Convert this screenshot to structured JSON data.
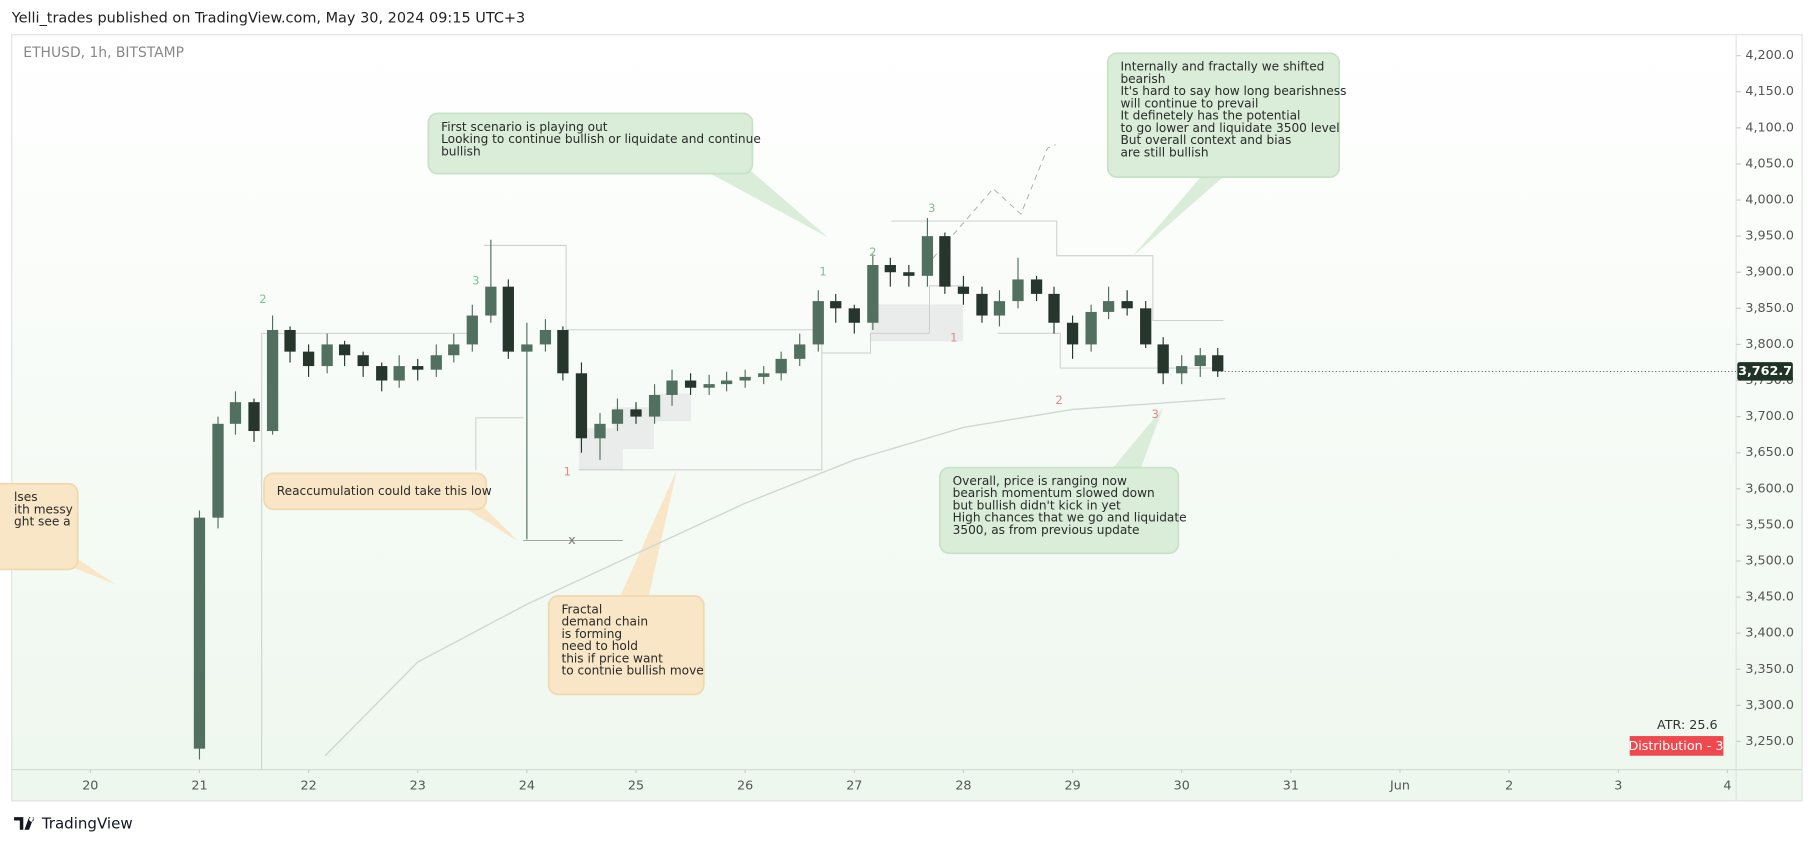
{
  "header": {
    "title": "Yelli_trades published on TradingView.com, May 30, 2024 09:15 UTC+3"
  },
  "chart_data": {
    "type": "candlestick",
    "symbol": "ETHUSD, 1h, BITSTAMP",
    "x": [
      21,
      21.17,
      21.33,
      21.5,
      21.67,
      21.83,
      22,
      22.17,
      22.33,
      22.5,
      22.67,
      22.83,
      23,
      23.17,
      23.33,
      23.5,
      23.67,
      23.83,
      24,
      24.17,
      24.33,
      24.5,
      24.67,
      24.83,
      25,
      25.17,
      25.33,
      25.5,
      25.67,
      25.83,
      26,
      26.17,
      26.33,
      26.5,
      26.67,
      26.83,
      27,
      27.17,
      27.33,
      27.5,
      27.67,
      27.83,
      28,
      28.17,
      28.33,
      28.5,
      28.67,
      28.83,
      29,
      29.17,
      29.33,
      29.5,
      29.67,
      29.83,
      30,
      30.17,
      30.33
    ],
    "open": [
      3240,
      3560,
      3690,
      3720,
      3680,
      3820,
      3790,
      3770,
      3800,
      3785,
      3770,
      3750,
      3770,
      3765,
      3785,
      3800,
      3840,
      3880,
      3790,
      3800,
      3820,
      3760,
      3670,
      3690,
      3710,
      3700,
      3730,
      3750,
      3740,
      3745,
      3750,
      3755,
      3760,
      3780,
      3800,
      3860,
      3850,
      3830,
      3910,
      3900,
      3895,
      3950,
      3880,
      3870,
      3840,
      3860,
      3890,
      3870,
      3830,
      3800,
      3845,
      3860,
      3850,
      3800,
      3760,
      3770,
      3785
    ],
    "high": [
      3570,
      3700,
      3735,
      3725,
      3840,
      3825,
      3800,
      3815,
      3805,
      3790,
      3775,
      3785,
      3780,
      3800,
      3815,
      3855,
      3945,
      3890,
      3830,
      3835,
      3825,
      3775,
      3705,
      3725,
      3720,
      3745,
      3765,
      3760,
      3758,
      3762,
      3765,
      3770,
      3790,
      3815,
      3875,
      3870,
      3855,
      3925,
      3920,
      3910,
      3975,
      3955,
      3895,
      3880,
      3875,
      3920,
      3895,
      3880,
      3840,
      3855,
      3880,
      3875,
      3860,
      3810,
      3785,
      3795,
      3795
    ],
    "low": [
      3225,
      3545,
      3675,
      3665,
      3675,
      3775,
      3755,
      3760,
      3770,
      3755,
      3735,
      3740,
      3750,
      3755,
      3775,
      3790,
      3830,
      3780,
      3530,
      3790,
      3750,
      3650,
      3640,
      3680,
      3690,
      3690,
      3715,
      3730,
      3730,
      3735,
      3740,
      3745,
      3750,
      3770,
      3790,
      3830,
      3815,
      3820,
      3880,
      3880,
      3880,
      3870,
      3855,
      3830,
      3825,
      3850,
      3860,
      3815,
      3780,
      3790,
      3835,
      3840,
      3795,
      3745,
      3745,
      3755,
      3755
    ],
    "close": [
      3560,
      3690,
      3720,
      3680,
      3820,
      3790,
      3770,
      3800,
      3785,
      3770,
      3750,
      3770,
      3765,
      3785,
      3800,
      3840,
      3880,
      3790,
      3800,
      3820,
      3760,
      3670,
      3690,
      3710,
      3700,
      3730,
      3750,
      3740,
      3745,
      3750,
      3755,
      3760,
      3780,
      3800,
      3860,
      3850,
      3830,
      3910,
      3900,
      3895,
      3950,
      3880,
      3870,
      3840,
      3860,
      3890,
      3870,
      3830,
      3800,
      3845,
      3860,
      3850,
      3800,
      3760,
      3770,
      3785,
      3762.7
    ],
    "up_color": "#52705f",
    "down_color": "#26362d",
    "ma_line": {
      "color": "#cfd8d0",
      "x": [
        22.15,
        23,
        24,
        25,
        26,
        27,
        28,
        29,
        30.4
      ],
      "values": [
        3230,
        3360,
        3440,
        3510,
        3580,
        3640,
        3685,
        3710,
        3725
      ]
    },
    "last_label": "3,762.7",
    "xlim": [
      19.28,
      35.08
    ],
    "ylim": [
      3211,
      4229
    ],
    "xticks": [
      20,
      21,
      22,
      23,
      24,
      25,
      26,
      27,
      28,
      29,
      30,
      31,
      {
        "value": 32,
        "label": "Jun"
      },
      {
        "value": 33,
        "label": "2"
      },
      {
        "value": 34,
        "label": "3"
      },
      {
        "value": 35,
        "label": "4"
      }
    ],
    "yticks": [
      {
        "value": 3250,
        "label": "3,250.0"
      },
      {
        "value": 3300,
        "label": "3,300.0"
      },
      {
        "value": 3350,
        "label": "3,350.0"
      },
      {
        "value": 3400,
        "label": "3,400.0"
      },
      {
        "value": 3450,
        "label": "3,450.0"
      },
      {
        "value": 3500,
        "label": "3,500.0"
      },
      {
        "value": 3550,
        "label": "3,550.0"
      },
      {
        "value": 3600,
        "label": "3,600.0"
      },
      {
        "value": 3650,
        "label": "3,650.0"
      },
      {
        "value": 3700,
        "label": "3,700.0"
      },
      {
        "value": 3750,
        "label": "3,750.0"
      },
      {
        "value": 3800,
        "label": "3,800.0"
      },
      {
        "value": 3850,
        "label": "3,850.0"
      },
      {
        "value": 3900,
        "label": "3,900.0"
      },
      {
        "value": 3950,
        "label": "3,950.0"
      },
      {
        "value": 4000,
        "label": "4,000.0"
      },
      {
        "value": 4050,
        "label": "4,050.0"
      },
      {
        "value": 4100,
        "label": "4,100.0"
      },
      {
        "value": 4150,
        "label": "4,150.0"
      },
      {
        "value": 4200,
        "label": "4,200.0"
      }
    ],
    "atr": "ATR: 25.6",
    "badge": "Distribution - 3",
    "wave_labels": [
      "2",
      "3",
      "1",
      "1",
      "2",
      "3",
      "1",
      "2",
      "3"
    ],
    "cross": "x"
  },
  "annotations": [
    {
      "lines": [
        "First scenario is playing out",
        "Looking to continue bullish or liquidate and continue",
        "bullish"
      ]
    },
    {
      "lines": [
        "Internally and fractally we shifted",
        "bearish",
        "It's hard to say how long bearishness",
        "will continue to prevail",
        "It definetely has the potential",
        "to go lower and liquidate 3500 level",
        "But overall context and bias",
        "are still bullish"
      ]
    },
    {
      "lines": [
        "Overall, price is ranging now",
        "bearish momentum slowed down",
        "but bullish didn't kick in yet",
        "High chances that we go and liquidate",
        "3500, as from previous update"
      ]
    },
    {
      "lines": [
        "Reaccumulation could take this low"
      ]
    },
    {
      "lines": [
        "Fractal",
        "demand chain",
        "is forming",
        "need to hold",
        "this if price want",
        "to contnie bullish move"
      ]
    },
    {
      "lines": [
        "lses",
        "ith messy",
        "ght see a"
      ]
    }
  ],
  "footer": {
    "brand": "TradingView"
  }
}
